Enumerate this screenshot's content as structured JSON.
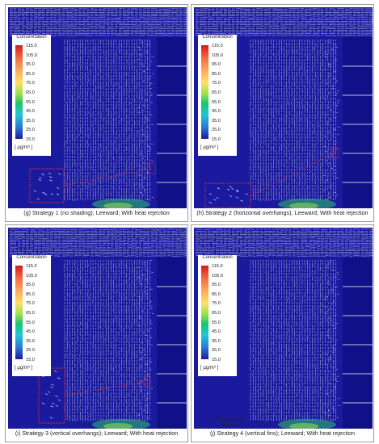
{
  "legend": {
    "title": "Concentration",
    "ticks": [
      "115.0",
      "105.0",
      "95.0",
      "85.0",
      "75.0",
      "65.0",
      "55.0",
      "45.0",
      "35.0",
      "25.0",
      "15.0"
    ],
    "unit": "[ µg/m³ ]"
  },
  "panels": [
    {
      "caption": "(g) Strategy 1 (no shading); Leeward; With heat rejection"
    },
    {
      "caption": "(h) Strategy 2 (horizontal overhangs); Leeward; With heat rejection"
    },
    {
      "caption": "(i) Strategy 3 (vertical overhangs); Leeward; With heat rejection"
    },
    {
      "caption": "(j) Strategy 4 (vertical fins); Leeward; With heat rejection"
    }
  ],
  "annotation": {
    "surrounding_building": "Surrounding building"
  },
  "colors": {
    "field": "#1a1a9e",
    "building": "#101088",
    "hotspot": "#2ec26a",
    "callout": "#e03030"
  }
}
